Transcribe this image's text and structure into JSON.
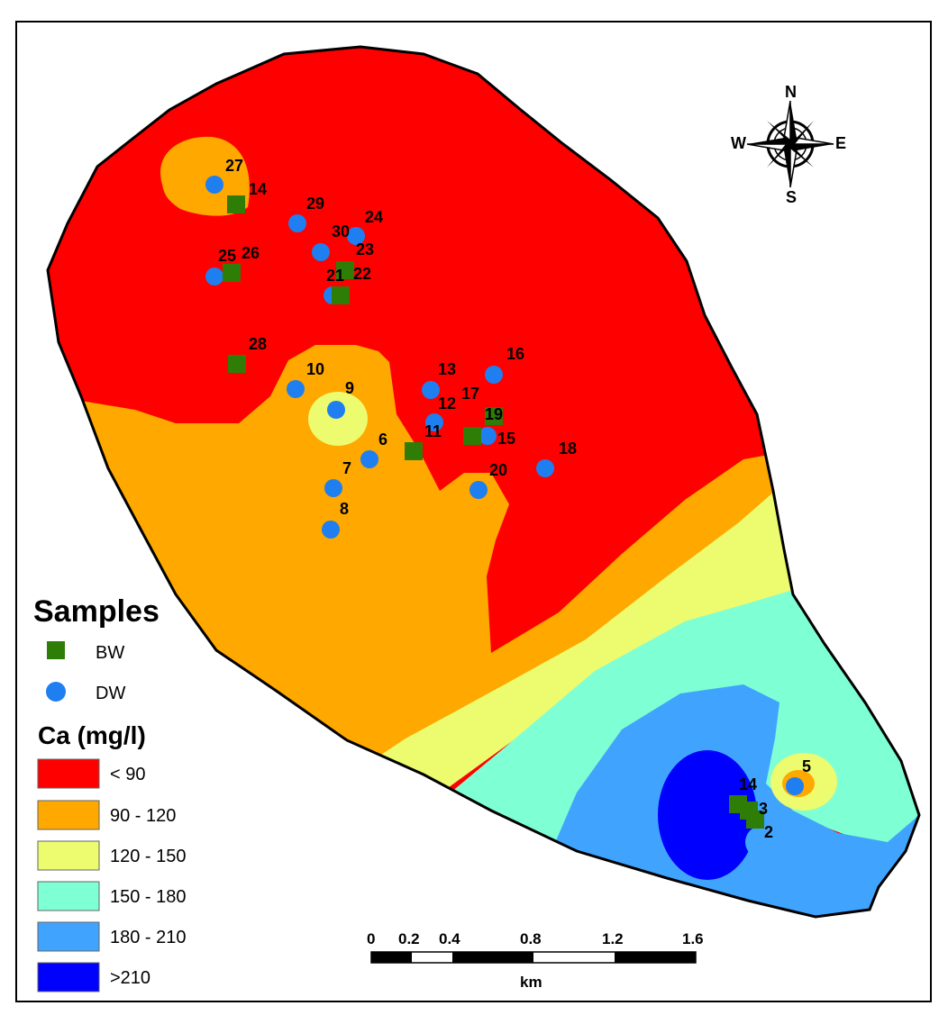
{
  "legend": {
    "samples_title": "Samples",
    "sample_types": [
      {
        "label": "BW",
        "shape": "square",
        "color": "#2e7d07"
      },
      {
        "label": "DW",
        "shape": "circle",
        "color": "#1f7ef0"
      }
    ],
    "class_title": "Ca (mg/l)",
    "classes": [
      {
        "label": "< 90",
        "color": "#fe0000"
      },
      {
        "label": "90 - 120",
        "color": "#fea800"
      },
      {
        "label": "120 - 150",
        "color": "#edfb6e"
      },
      {
        "label": "150 - 180",
        "color": "#7effd4"
      },
      {
        "label": "180 - 210",
        "color": "#40a4ff"
      },
      {
        "label": ">210",
        "color": "#0000ff"
      }
    ]
  },
  "north_arrow": {
    "n": "N",
    "s": "S",
    "e": "E",
    "w": "W"
  },
  "scale_bar": {
    "ticks": [
      "0",
      "0.2",
      "0.4",
      "0.8",
      "1.2",
      "1.6"
    ],
    "unit": "km"
  },
  "bw_labels": [
    "14",
    "26",
    "23",
    "22",
    "28",
    "17",
    "19",
    "11",
    "14",
    "3",
    "2"
  ],
  "dw_labels": [
    "27",
    "29",
    "24",
    "30",
    "25",
    "21",
    "10",
    "9",
    "13",
    "16",
    "12",
    "15",
    "6",
    "18",
    "7",
    "20",
    "8",
    "5"
  ]
}
